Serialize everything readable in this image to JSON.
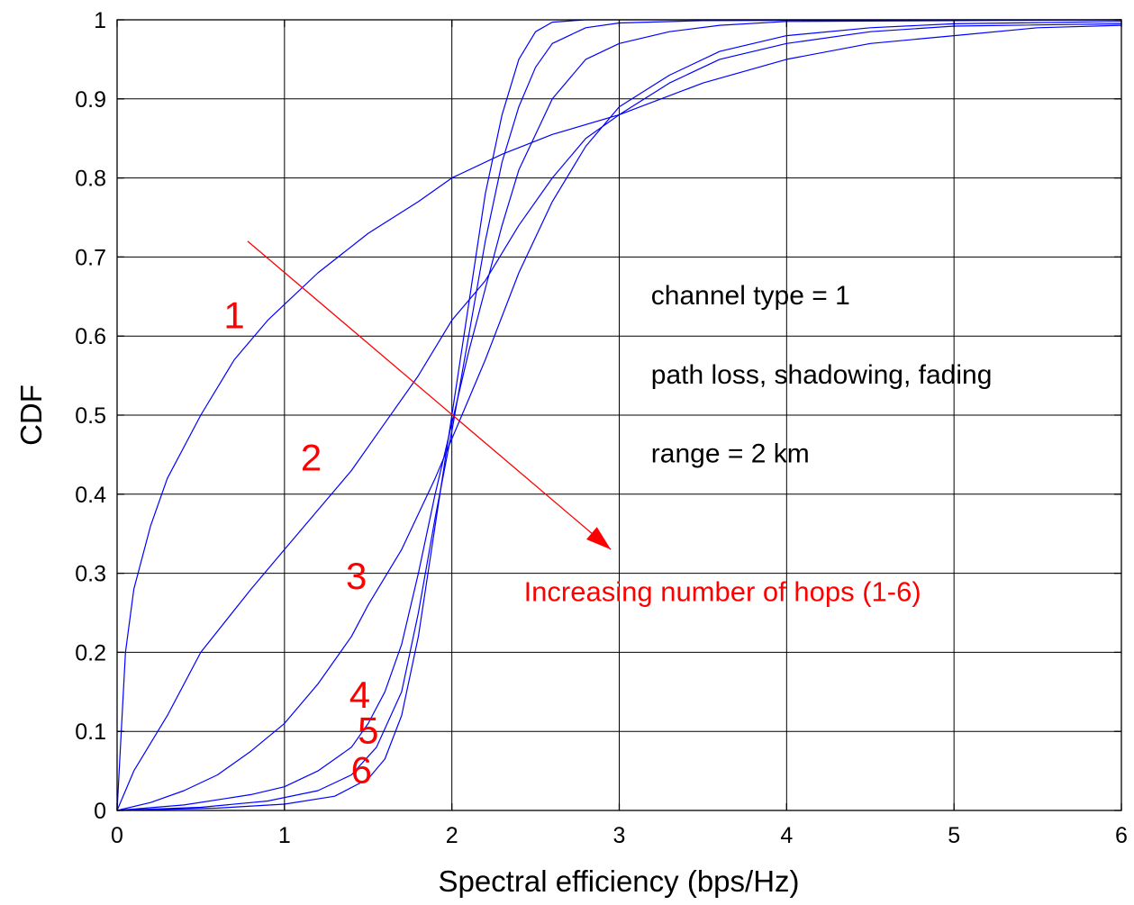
{
  "chart_data": {
    "type": "line",
    "title": "",
    "xlabel": "Spectral efficiency (bps/Hz)",
    "ylabel": "CDF",
    "xlim": [
      0,
      6
    ],
    "ylim": [
      0,
      1
    ],
    "xticks": [
      0,
      1,
      2,
      3,
      4,
      5,
      6
    ],
    "yticks": [
      0,
      0.1,
      0.2,
      0.3,
      0.4,
      0.5,
      0.6,
      0.7,
      0.8,
      0.9,
      1
    ],
    "grid": true,
    "line_color": "#0000ff",
    "annotation_color": "#ff0000",
    "series": [
      {
        "label": "1",
        "label_pos": [
          0.7,
          0.61
        ],
        "points": [
          [
            0,
            0
          ],
          [
            0.02,
            0.08
          ],
          [
            0.05,
            0.2
          ],
          [
            0.1,
            0.28
          ],
          [
            0.2,
            0.36
          ],
          [
            0.3,
            0.42
          ],
          [
            0.5,
            0.5
          ],
          [
            0.7,
            0.57
          ],
          [
            0.9,
            0.62
          ],
          [
            1.0,
            0.64
          ],
          [
            1.2,
            0.68
          ],
          [
            1.5,
            0.73
          ],
          [
            1.8,
            0.77
          ],
          [
            2.0,
            0.8
          ],
          [
            2.3,
            0.83
          ],
          [
            2.6,
            0.855
          ],
          [
            3.0,
            0.88
          ],
          [
            3.5,
            0.92
          ],
          [
            4.0,
            0.95
          ],
          [
            4.5,
            0.97
          ],
          [
            5.0,
            0.98
          ],
          [
            5.5,
            0.99
          ],
          [
            6.0,
            0.993
          ]
        ]
      },
      {
        "label": "2",
        "label_pos": [
          1.16,
          0.43
        ],
        "points": [
          [
            0,
            0
          ],
          [
            0.1,
            0.05
          ],
          [
            0.3,
            0.12
          ],
          [
            0.5,
            0.2
          ],
          [
            0.8,
            0.28
          ],
          [
            1.0,
            0.33
          ],
          [
            1.2,
            0.38
          ],
          [
            1.4,
            0.43
          ],
          [
            1.6,
            0.49
          ],
          [
            1.8,
            0.55
          ],
          [
            2.0,
            0.62
          ],
          [
            2.2,
            0.67
          ],
          [
            2.4,
            0.74
          ],
          [
            2.6,
            0.8
          ],
          [
            2.8,
            0.85
          ],
          [
            3.0,
            0.88
          ],
          [
            3.3,
            0.92
          ],
          [
            3.6,
            0.95
          ],
          [
            4.0,
            0.97
          ],
          [
            4.5,
            0.985
          ],
          [
            5.0,
            0.992
          ],
          [
            6.0,
            0.995
          ]
        ]
      },
      {
        "label": "3",
        "label_pos": [
          1.43,
          0.28
        ],
        "points": [
          [
            0,
            0
          ],
          [
            0.2,
            0.01
          ],
          [
            0.4,
            0.025
          ],
          [
            0.6,
            0.045
          ],
          [
            0.8,
            0.075
          ],
          [
            1.0,
            0.11
          ],
          [
            1.2,
            0.16
          ],
          [
            1.4,
            0.22
          ],
          [
            1.5,
            0.26
          ],
          [
            1.7,
            0.33
          ],
          [
            1.9,
            0.42
          ],
          [
            2.0,
            0.47
          ],
          [
            2.1,
            0.52
          ],
          [
            2.2,
            0.57
          ],
          [
            2.4,
            0.68
          ],
          [
            2.6,
            0.77
          ],
          [
            2.8,
            0.84
          ],
          [
            3.0,
            0.89
          ],
          [
            3.3,
            0.93
          ],
          [
            3.6,
            0.96
          ],
          [
            4.0,
            0.98
          ],
          [
            4.5,
            0.99
          ],
          [
            5.0,
            0.995
          ],
          [
            6.0,
            0.998
          ]
        ]
      },
      {
        "label": "4",
        "label_pos": [
          1.45,
          0.13
        ],
        "points": [
          [
            0,
            0
          ],
          [
            0.4,
            0.007
          ],
          [
            0.8,
            0.02
          ],
          [
            1.0,
            0.03
          ],
          [
            1.2,
            0.05
          ],
          [
            1.4,
            0.08
          ],
          [
            1.5,
            0.11
          ],
          [
            1.6,
            0.15
          ],
          [
            1.7,
            0.21
          ],
          [
            1.8,
            0.3
          ],
          [
            1.9,
            0.4
          ],
          [
            2.0,
            0.49
          ],
          [
            2.1,
            0.58
          ],
          [
            2.2,
            0.66
          ],
          [
            2.3,
            0.74
          ],
          [
            2.4,
            0.81
          ],
          [
            2.6,
            0.9
          ],
          [
            2.8,
            0.95
          ],
          [
            3.0,
            0.97
          ],
          [
            3.3,
            0.985
          ],
          [
            3.6,
            0.993
          ],
          [
            4.0,
            0.998
          ],
          [
            6.0,
            1.0
          ]
        ]
      },
      {
        "label": "5",
        "label_pos": [
          1.5,
          0.085
        ],
        "points": [
          [
            0,
            0
          ],
          [
            0.5,
            0.004
          ],
          [
            0.9,
            0.012
          ],
          [
            1.2,
            0.025
          ],
          [
            1.4,
            0.045
          ],
          [
            1.55,
            0.08
          ],
          [
            1.7,
            0.15
          ],
          [
            1.8,
            0.25
          ],
          [
            1.9,
            0.37
          ],
          [
            2.0,
            0.48
          ],
          [
            2.1,
            0.6
          ],
          [
            2.2,
            0.72
          ],
          [
            2.3,
            0.82
          ],
          [
            2.4,
            0.89
          ],
          [
            2.5,
            0.94
          ],
          [
            2.6,
            0.97
          ],
          [
            2.8,
            0.99
          ],
          [
            3.0,
            0.996
          ],
          [
            3.5,
            0.999
          ],
          [
            6.0,
            1.0
          ]
        ]
      },
      {
        "label": "6",
        "label_pos": [
          1.46,
          0.035
        ],
        "points": [
          [
            0,
            0
          ],
          [
            0.6,
            0.003
          ],
          [
            1.0,
            0.008
          ],
          [
            1.3,
            0.018
          ],
          [
            1.5,
            0.04
          ],
          [
            1.6,
            0.065
          ],
          [
            1.7,
            0.12
          ],
          [
            1.8,
            0.22
          ],
          [
            1.9,
            0.36
          ],
          [
            2.0,
            0.5
          ],
          [
            2.1,
            0.64
          ],
          [
            2.2,
            0.78
          ],
          [
            2.3,
            0.88
          ],
          [
            2.4,
            0.95
          ],
          [
            2.5,
            0.985
          ],
          [
            2.6,
            0.997
          ],
          [
            2.8,
            1.0
          ],
          [
            6.0,
            1.0
          ]
        ]
      }
    ],
    "annotations": {
      "notes": [
        {
          "text": "channel type = 1",
          "x": 3.19,
          "y": 0.64
        },
        {
          "text": "path loss, shadowing, fading",
          "x": 3.19,
          "y": 0.54
        },
        {
          "text": "range = 2 km",
          "x": 3.19,
          "y": 0.44
        }
      ],
      "arrow": {
        "from": [
          0.78,
          0.72
        ],
        "to": [
          2.95,
          0.33
        ]
      },
      "arrow_label": {
        "text": "Increasing number of hops (1-6)",
        "x": 2.43,
        "y": 0.265
      }
    }
  }
}
